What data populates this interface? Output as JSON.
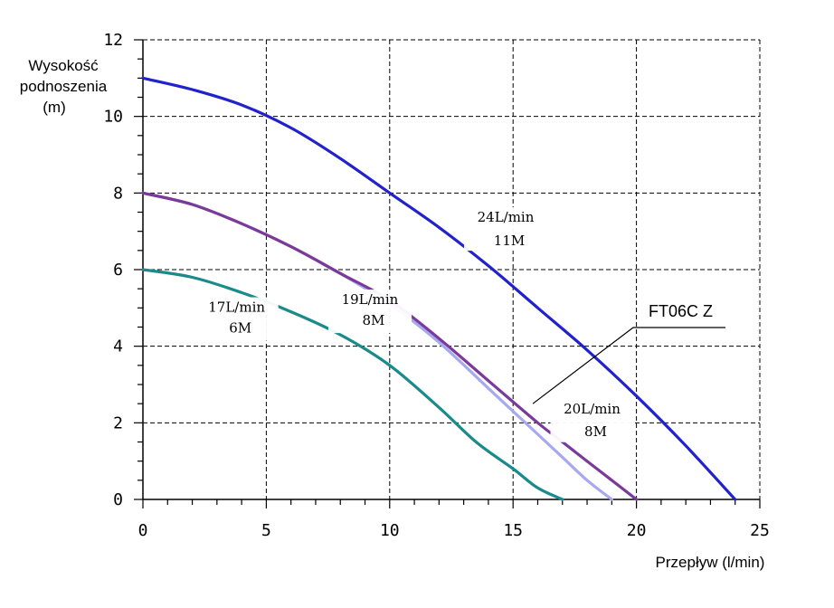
{
  "chart_data": {
    "type": "line",
    "title": "",
    "ylabel": [
      "Wysokość",
      "podnoszenia",
      "(m)"
    ],
    "xlabel": "Przepływ (l/min)",
    "xlim": [
      0,
      25
    ],
    "ylim": [
      0,
      12
    ],
    "x_ticks": [
      "0",
      "5",
      "10",
      "15",
      "20",
      "25"
    ],
    "y_ticks": [
      "0",
      "2",
      "4",
      "6",
      "8",
      "10",
      "12"
    ],
    "grid": true,
    "series": [
      {
        "name": "17L/min 6M",
        "label_line1": "17L/min",
        "label_line2": "6M",
        "color": "#1a8a8a",
        "x": [
          0,
          2,
          4,
          6,
          8,
          10,
          12,
          13.5,
          15,
          16,
          17
        ],
        "y": [
          6.0,
          5.8,
          5.4,
          4.9,
          4.3,
          3.5,
          2.4,
          1.5,
          0.8,
          0.3,
          0
        ]
      },
      {
        "name": "19L/min 8M",
        "label_line1": "19L/min",
        "label_line2": "8M",
        "color": "#a8a8f0",
        "x": [
          0,
          2,
          4,
          6,
          8,
          10,
          12,
          14,
          15,
          16,
          17,
          18,
          19
        ],
        "y": [
          8.0,
          7.7,
          7.2,
          6.6,
          5.9,
          5.1,
          4.1,
          2.9,
          2.3,
          1.7,
          1.1,
          0.5,
          0
        ]
      },
      {
        "name": "20L/min 8M",
        "label_line1": "20L/min",
        "label_line2": "8M",
        "color": "#7a3a9a",
        "x": [
          0,
          2,
          4,
          6,
          8,
          10,
          12,
          14,
          16,
          17,
          18,
          19,
          20
        ],
        "y": [
          8.0,
          7.7,
          7.2,
          6.6,
          5.9,
          5.2,
          4.2,
          3.1,
          2.0,
          1.5,
          1.0,
          0.5,
          0
        ]
      },
      {
        "name": "24L/min 11M",
        "label_line1": "24L/min",
        "label_line2": "11M",
        "color": "#2222cc",
        "x": [
          0,
          2,
          4,
          6,
          8,
          10,
          12,
          14,
          16,
          18,
          20,
          22,
          24
        ],
        "y": [
          11.0,
          10.7,
          10.3,
          9.7,
          8.9,
          8.0,
          7.1,
          6.1,
          5.0,
          3.9,
          2.7,
          1.4,
          0
        ]
      }
    ],
    "annotation": {
      "text": "FT06C Z",
      "points_to": "20L/min 8M",
      "target_x": 15.8,
      "target_y": 2.5
    }
  }
}
